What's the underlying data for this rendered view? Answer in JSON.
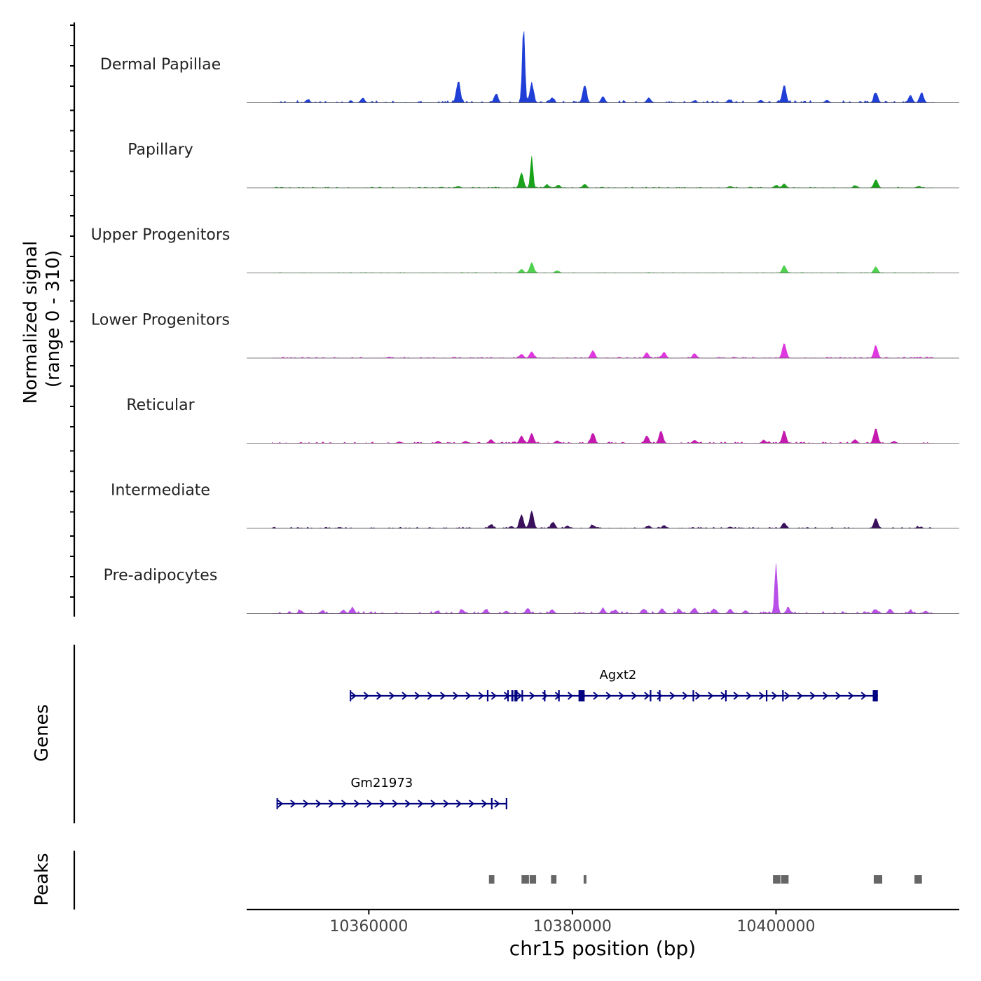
{
  "chart_data": {
    "type": "area",
    "title": "",
    "chromosome": "chr15",
    "xlabel": "chr15 position (bp)",
    "xlim": [
      10348000,
      10418000
    ],
    "x_ticks": [
      10360000,
      10380000,
      10400000
    ],
    "x_tick_labels": [
      "10360000",
      "10380000",
      "10400000"
    ],
    "coverage": {
      "ylabel_line1": "Normalized signal",
      "ylabel_line2": "(range 0 - 310)",
      "ylim": [
        0,
        310
      ],
      "tracks": [
        {
          "name": "Dermal Papillae",
          "color": "#1f3fd6",
          "peaks": [
            [
              10354000,
              12
            ],
            [
              10359400,
              18
            ],
            [
              10368800,
              85
            ],
            [
              10372500,
              35
            ],
            [
              10375200,
              310
            ],
            [
              10376000,
              75
            ],
            [
              10378000,
              20
            ],
            [
              10381200,
              70
            ],
            [
              10383000,
              25
            ],
            [
              10387500,
              20
            ],
            [
              10392000,
              8
            ],
            [
              10395400,
              12
            ],
            [
              10398500,
              10
            ],
            [
              10400800,
              70
            ],
            [
              10405000,
              10
            ],
            [
              10409800,
              40
            ],
            [
              10413200,
              30
            ],
            [
              10414300,
              40
            ]
          ],
          "baseline": 4
        },
        {
          "name": "Papillary",
          "color": "#1aa31a",
          "peaks": [
            [
              10368800,
              6
            ],
            [
              10375000,
              60
            ],
            [
              10376000,
              125
            ],
            [
              10377500,
              12
            ],
            [
              10378600,
              10
            ],
            [
              10381200,
              14
            ],
            [
              10395500,
              6
            ],
            [
              10400000,
              10
            ],
            [
              10400800,
              16
            ],
            [
              10407800,
              8
            ],
            [
              10409800,
              32
            ],
            [
              10414000,
              6
            ]
          ],
          "baseline": 1.5
        },
        {
          "name": "Upper Progenitors",
          "color": "#4fd14f",
          "peaks": [
            [
              10375000,
              15
            ],
            [
              10376000,
              42
            ],
            [
              10378500,
              8
            ],
            [
              10400800,
              30
            ],
            [
              10409800,
              24
            ]
          ],
          "baseline": 1
        },
        {
          "name": "Lower Progenitors",
          "color": "#e038e0",
          "peaks": [
            [
              10375000,
              16
            ],
            [
              10376000,
              26
            ],
            [
              10382000,
              30
            ],
            [
              10387300,
              22
            ],
            [
              10389000,
              24
            ],
            [
              10392000,
              18
            ],
            [
              10400800,
              60
            ],
            [
              10409800,
              50
            ],
            [
              10362000,
              4
            ]
          ],
          "baseline": 2
        },
        {
          "name": "Reticular",
          "color": "#c41ab0",
          "peaks": [
            [
              10363000,
              6
            ],
            [
              10366800,
              8
            ],
            [
              10369500,
              8
            ],
            [
              10372000,
              15
            ],
            [
              10375000,
              30
            ],
            [
              10376000,
              40
            ],
            [
              10378500,
              10
            ],
            [
              10382000,
              40
            ],
            [
              10387300,
              30
            ],
            [
              10388700,
              50
            ],
            [
              10392000,
              12
            ],
            [
              10398800,
              12
            ],
            [
              10400800,
              50
            ],
            [
              10407800,
              12
            ],
            [
              10409800,
              60
            ],
            [
              10411600,
              8
            ]
          ],
          "baseline": 2.5
        },
        {
          "name": "Intermediate",
          "color": "#3a0f5c",
          "peaks": [
            [
              10372000,
              15
            ],
            [
              10374000,
              8
            ],
            [
              10375000,
              55
            ],
            [
              10376000,
              70
            ],
            [
              10378100,
              25
            ],
            [
              10379500,
              10
            ],
            [
              10382000,
              12
            ],
            [
              10387500,
              10
            ],
            [
              10389000,
              12
            ],
            [
              10395500,
              6
            ],
            [
              10400800,
              22
            ],
            [
              10409800,
              40
            ],
            [
              10414000,
              5
            ]
          ],
          "baseline": 2.5
        },
        {
          "name": "Pre-adipocytes",
          "color": "#b84fe8",
          "peaks": [
            [
              10353300,
              12
            ],
            [
              10355400,
              10
            ],
            [
              10357500,
              14
            ],
            [
              10358400,
              22
            ],
            [
              10366700,
              10
            ],
            [
              10369200,
              14
            ],
            [
              10371500,
              16
            ],
            [
              10373500,
              10
            ],
            [
              10375600,
              20
            ],
            [
              10378000,
              16
            ],
            [
              10383000,
              20
            ],
            [
              10384200,
              15
            ],
            [
              10387000,
              18
            ],
            [
              10388800,
              20
            ],
            [
              10390500,
              16
            ],
            [
              10392000,
              22
            ],
            [
              10394000,
              16
            ],
            [
              10395500,
              18
            ],
            [
              10397000,
              12
            ],
            [
              10400000,
              200
            ],
            [
              10401200,
              20
            ],
            [
              10409800,
              16
            ],
            [
              10411200,
              18
            ],
            [
              10413200,
              12
            ],
            [
              10414700,
              10
            ]
          ],
          "baseline": 4
        }
      ]
    },
    "genes": {
      "ylabel": "Genes",
      "strand": "+",
      "items": [
        {
          "name": "Agxt2",
          "start": 10358200,
          "end": 10410000,
          "row": 1,
          "exons": [
            [
              10371600,
              10371700
            ],
            [
              10373600,
              10373700
            ],
            [
              10374000,
              10374200
            ],
            [
              10374300,
              10374600
            ],
            [
              10375000,
              10375100
            ],
            [
              10377200,
              10377300
            ],
            [
              10378600,
              10378700
            ],
            [
              10380600,
              10381200
            ],
            [
              10387600,
              10387700
            ],
            [
              10388500,
              10388600
            ],
            [
              10391800,
              10391900
            ],
            [
              10395000,
              10395100
            ],
            [
              10399000,
              10399100
            ],
            [
              10400600,
              10400700
            ],
            [
              10409500,
              10410000
            ]
          ]
        },
        {
          "name": "Gm21973",
          "start": 10351000,
          "end": 10373600,
          "row": 2,
          "exons": [
            [
              10372000,
              10372100
            ],
            [
              10373450,
              10373600
            ]
          ]
        }
      ]
    },
    "peaks": {
      "ylabel": "Peaks",
      "color": "#666666",
      "regions": [
        [
          10371800,
          10372400
        ],
        [
          10375000,
          10375800
        ],
        [
          10375800,
          10376500
        ],
        [
          10377900,
          10378500
        ],
        [
          10381100,
          10381400
        ],
        [
          10399700,
          10400500
        ],
        [
          10400500,
          10401300
        ],
        [
          10409600,
          10410500
        ],
        [
          10413600,
          10414400
        ]
      ]
    }
  }
}
